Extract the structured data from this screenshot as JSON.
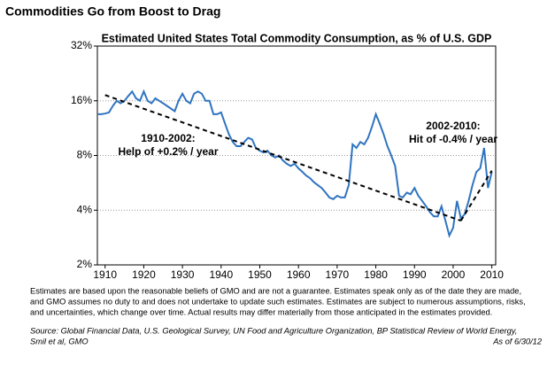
{
  "chart_data": {
    "type": "line",
    "header": "Commodities Go from Boost to Drag",
    "title": "Estimated United States Total Commodity Consumption, as % of U.S. GDP",
    "log_scale_y": true,
    "grid": true,
    "xlim": [
      1908,
      2011
    ],
    "xticks": [
      1910,
      1920,
      1930,
      1940,
      1950,
      1960,
      1970,
      1980,
      1990,
      2000,
      2010
    ],
    "ylim": [
      2,
      32
    ],
    "yticks": [
      {
        "value": 2,
        "label": "2%"
      },
      {
        "value": 4,
        "label": "4%"
      },
      {
        "value": 8,
        "label": "8%"
      },
      {
        "value": 16,
        "label": "16%"
      },
      {
        "value": 32,
        "label": "32%"
      }
    ],
    "x": [
      1908,
      1909,
      1910,
      1911,
      1912,
      1913,
      1914,
      1915,
      1916,
      1917,
      1918,
      1919,
      1920,
      1921,
      1922,
      1923,
      1924,
      1925,
      1926,
      1927,
      1928,
      1929,
      1930,
      1931,
      1932,
      1933,
      1934,
      1935,
      1936,
      1937,
      1938,
      1939,
      1940,
      1941,
      1942,
      1943,
      1944,
      1945,
      1946,
      1947,
      1948,
      1949,
      1950,
      1951,
      1952,
      1953,
      1954,
      1955,
      1956,
      1957,
      1958,
      1959,
      1960,
      1961,
      1962,
      1963,
      1964,
      1965,
      1966,
      1967,
      1968,
      1969,
      1970,
      1971,
      1972,
      1973,
      1974,
      1975,
      1976,
      1977,
      1978,
      1979,
      1980,
      1981,
      1982,
      1983,
      1984,
      1985,
      1986,
      1987,
      1988,
      1989,
      1990,
      1991,
      1992,
      1993,
      1994,
      1995,
      1996,
      1997,
      1998,
      1999,
      2000,
      2001,
      2002,
      2003,
      2004,
      2005,
      2006,
      2007,
      2008,
      2009,
      2010
    ],
    "series": [
      {
        "color": "#2f74c0",
        "values": [
          13.5,
          13.5,
          13.6,
          13.8,
          15,
          16,
          15.5,
          16,
          17,
          18,
          16.5,
          16,
          18,
          16,
          15.5,
          16.5,
          16,
          15.5,
          15,
          14.5,
          14,
          16,
          17.5,
          16,
          15.5,
          17.5,
          18,
          17.5,
          16,
          16,
          13.5,
          13.5,
          13.8,
          12,
          10.5,
          9.5,
          9,
          9,
          9.5,
          10,
          9.8,
          8.8,
          8.5,
          8.3,
          8.5,
          8,
          7.8,
          8,
          7.5,
          7.2,
          7,
          7.2,
          6.8,
          6.5,
          6.2,
          6,
          5.7,
          5.5,
          5.3,
          5,
          4.7,
          4.6,
          4.8,
          4.7,
          4.7,
          5.5,
          9.2,
          8.8,
          9.5,
          9.2,
          10,
          11.5,
          13.5,
          12,
          10.5,
          9,
          8,
          7,
          4.8,
          4.7,
          5,
          4.9,
          5.3,
          4.8,
          4.5,
          4.2,
          3.9,
          3.7,
          3.7,
          4.2,
          3.5,
          2.9,
          3.2,
          4.5,
          3.6,
          3.8,
          4.5,
          5.5,
          6.5,
          6.8,
          8.8,
          5.3,
          6.5
        ]
      }
    ],
    "trend_lines": [
      {
        "color": "#000000",
        "x": [
          1910,
          2002
        ],
        "values": [
          17.2,
          3.5
        ]
      },
      {
        "color": "#000000",
        "x": [
          2002,
          2010
        ],
        "values": [
          3.5,
          6.6
        ]
      }
    ],
    "annotations": [
      {
        "lines": [
          "1910-2002:",
          "Help of +0.2% / year"
        ]
      },
      {
        "lines": [
          "2002-2010:",
          "Hit of -0.4% / year"
        ]
      }
    ],
    "disclaimer": [
      "Estimates are based upon the reasonable beliefs of GMO and are not a guarantee.  Estimates speak only as of the date they are made,",
      "and GMO assumes no duty to and does not undertake to update such estimates. Estimates are subject to numerous assumptions, risks,",
      "and uncertainties, which change over time.  Actual results may differ materially from those anticipated in the estimates provided."
    ],
    "source": [
      "Source:  Global Financial Data, U.S. Geological Survey, UN Food and Agriculture Organization, BP Statistical Review of World Energy,",
      "Smil et al, GMO"
    ],
    "as_of": "As of 6/30/12"
  }
}
